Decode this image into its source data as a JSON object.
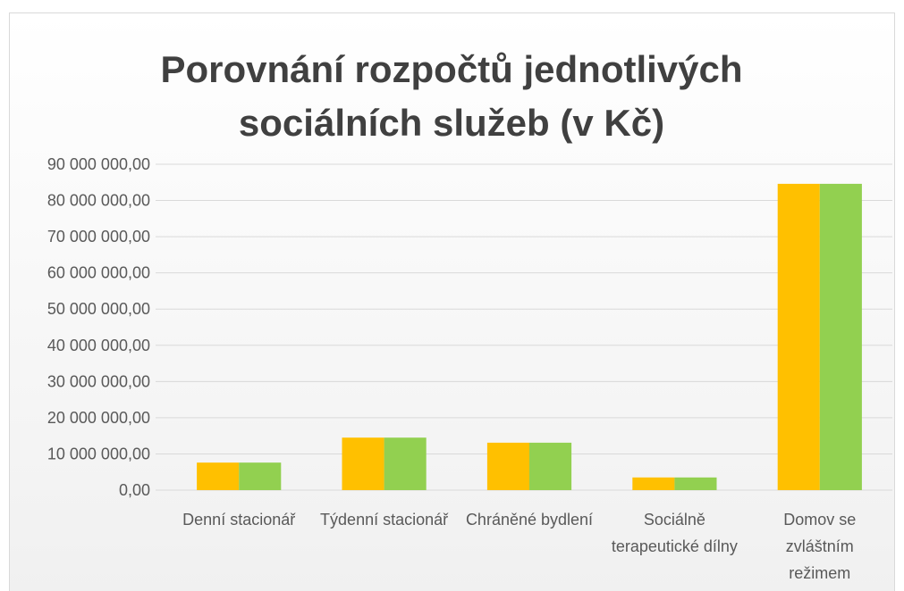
{
  "chart_data": {
    "type": "bar",
    "title": "Porovnání rozpočtů jednotlivých sociálních služeb (v Kč)",
    "categories": [
      "Denní stacionář",
      "Týdenní stacionář",
      "Chráněné bydlení",
      "Sociálně terapeutické dílny",
      "Domov se zvláštním režimem"
    ],
    "series": [
      {
        "color": "#ffc000",
        "values": [
          7600000,
          14500000,
          13100000,
          3500000,
          84600000
        ]
      },
      {
        "color": "#92d050",
        "values": [
          7600000,
          14500000,
          13100000,
          3500000,
          84600000
        ]
      }
    ],
    "ylim": [
      0,
      90000000
    ],
    "yticks": [
      {
        "value": 0,
        "label": "0,00"
      },
      {
        "value": 10000000,
        "label": "10 000 000,00"
      },
      {
        "value": 20000000,
        "label": "20 000 000,00"
      },
      {
        "value": 30000000,
        "label": "30 000 000,00"
      },
      {
        "value": 40000000,
        "label": "40 000 000,00"
      },
      {
        "value": 50000000,
        "label": "50 000 000,00"
      },
      {
        "value": 60000000,
        "label": "60 000 000,00"
      },
      {
        "value": 70000000,
        "label": "70 000 000,00"
      },
      {
        "value": 80000000,
        "label": "80 000 000,00"
      },
      {
        "value": 90000000,
        "label": "90 000 000,00"
      }
    ],
    "grid": true
  }
}
